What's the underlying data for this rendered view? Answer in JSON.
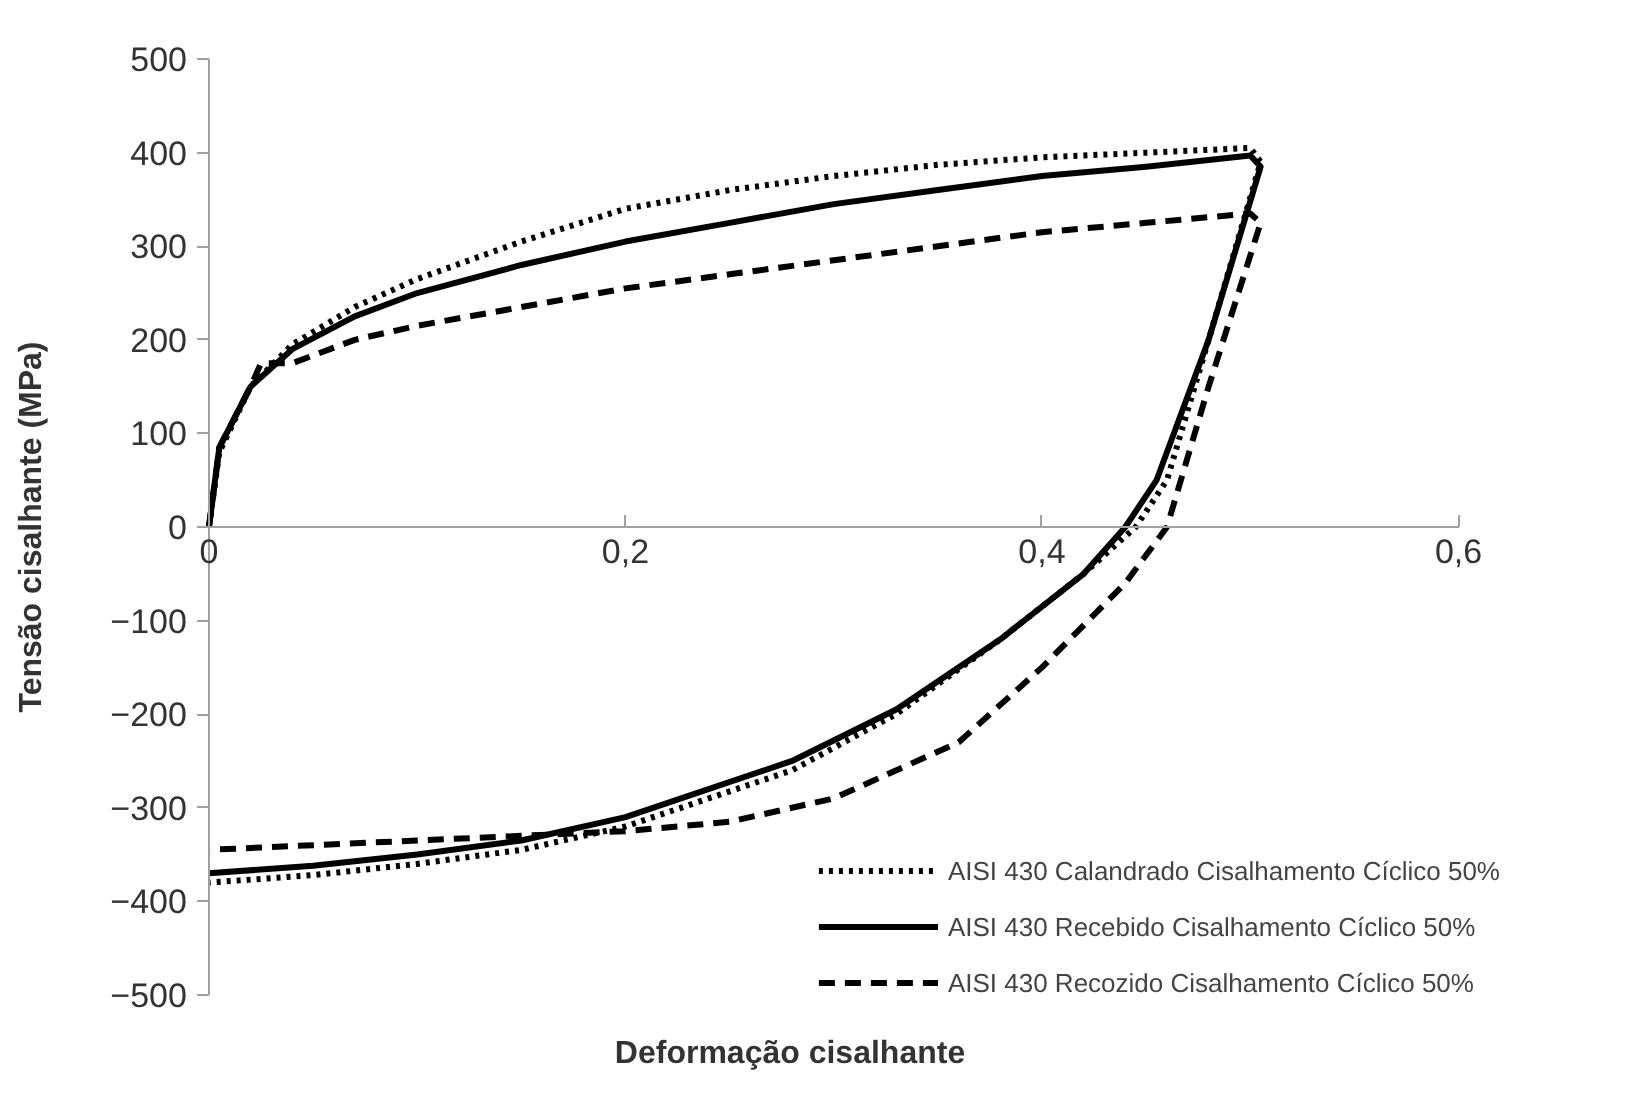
{
  "chart_data": {
    "type": "line",
    "xlabel": "Deformação cisalhante",
    "ylabel": "Tensão cisalhante (MPa)",
    "xlim": [
      0,
      0.6
    ],
    "ylim": [
      -500,
      500
    ],
    "xticks": [
      0,
      {
        "value": 0.2,
        "label": "0,2"
      },
      {
        "value": 0.4,
        "label": "0,4"
      },
      {
        "value": 0.6,
        "label": "0,6"
      }
    ],
    "yticks": [
      -500,
      -400,
      -300,
      -200,
      -100,
      0,
      100,
      200,
      300,
      400,
      500
    ],
    "grid": false,
    "legend": "bottom right",
    "series": [
      {
        "name": "AISI 430 Calandrado Cisalhamento Cíclico 50%",
        "color": "#000000",
        "line_style": "dotted",
        "x": [
          0,
          0.005,
          0.02,
          0.04,
          0.07,
          0.1,
          0.15,
          0.2,
          0.25,
          0.3,
          0.35,
          0.4,
          0.45,
          0.5,
          0.505,
          0.48,
          0.46,
          0.445,
          0.42,
          0.38,
          0.33,
          0.28,
          0.2,
          0.15,
          0.1,
          0.05,
          0
        ],
        "values": [
          0,
          80,
          150,
          195,
          235,
          265,
          305,
          340,
          360,
          375,
          387,
          395,
          400,
          405,
          390,
          200,
          50,
          0,
          -50,
          -120,
          -200,
          -260,
          -320,
          -345,
          -360,
          -372,
          -380
        ]
      },
      {
        "name": "AISI 430 Recebido Cisalhamento Cíclico 50%",
        "color": "#000000",
        "line_style": "solid",
        "x": [
          0,
          0.005,
          0.02,
          0.04,
          0.07,
          0.1,
          0.15,
          0.2,
          0.25,
          0.3,
          0.35,
          0.4,
          0.45,
          0.5,
          0.505,
          0.48,
          0.455,
          0.44,
          0.42,
          0.38,
          0.33,
          0.28,
          0.2,
          0.15,
          0.1,
          0.05,
          0
        ],
        "values": [
          0,
          85,
          150,
          190,
          225,
          250,
          280,
          305,
          325,
          345,
          360,
          375,
          385,
          397,
          385,
          200,
          50,
          0,
          -50,
          -120,
          -195,
          -250,
          -310,
          -335,
          -350,
          -362,
          -370
        ]
      },
      {
        "name": "AISI 430 Recozido Cisalhamento Cíclico 50%",
        "color": "#000000",
        "line_style": "dashed",
        "x": [
          0,
          0.005,
          0.02,
          0.025,
          0.04,
          0.07,
          0.1,
          0.15,
          0.2,
          0.25,
          0.3,
          0.35,
          0.4,
          0.45,
          0.5,
          0.505,
          0.48,
          0.46,
          0.44,
          0.4,
          0.36,
          0.3,
          0.25,
          0.2,
          0.1,
          0.05,
          0
        ],
        "values": [
          0,
          85,
          150,
          175,
          175,
          200,
          215,
          235,
          255,
          270,
          285,
          300,
          315,
          325,
          335,
          325,
          150,
          0,
          -60,
          -150,
          -230,
          -290,
          -315,
          -325,
          -335,
          -340,
          -345
        ]
      }
    ]
  }
}
